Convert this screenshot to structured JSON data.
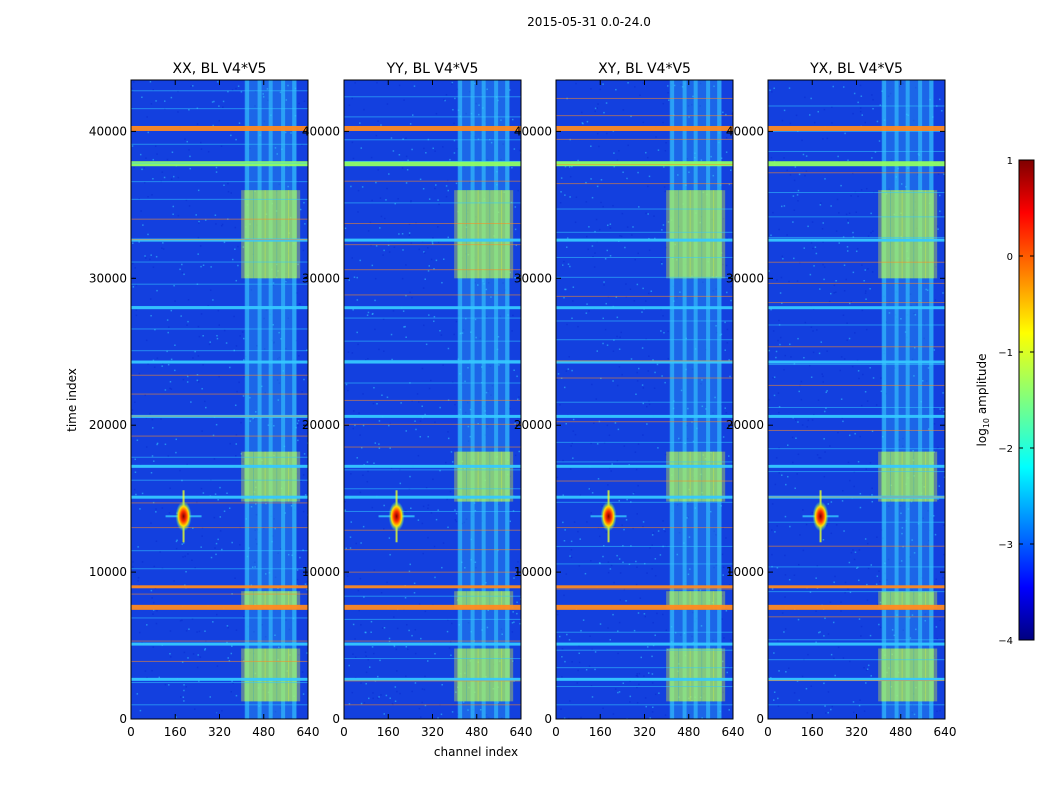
{
  "figure": {
    "suptitle": "2015-05-31 0.0-24.0",
    "xlabel": "channel index",
    "ylabel": "time index",
    "colorbar_label_prefix": "log",
    "colorbar_label_sub": "10",
    "colorbar_label_suffix": " amplitude"
  },
  "colors": {
    "background": "#00007f",
    "noise_base": "#1a55ff",
    "band_cyan": "#35c8ff",
    "band_green": "#8fff63",
    "band_yellow": "#e8ff2a",
    "line_orange": "#ff8a20",
    "line_red": "#ff3a00",
    "peak_red": "#b00000"
  },
  "chart_data": {
    "type": "heatmap",
    "panels": [
      {
        "title": "XX, BL V4*V5"
      },
      {
        "title": "YY, BL V4*V5"
      },
      {
        "title": "XY, BL V4*V5"
      },
      {
        "title": "YX, BL V4*V5"
      }
    ],
    "xlim": [
      0,
      640
    ],
    "ylim": [
      0,
      43500
    ],
    "x_ticks": [
      0,
      160,
      320,
      480,
      640
    ],
    "y_ticks": [
      0,
      10000,
      20000,
      30000,
      40000
    ],
    "colorbar": {
      "range": [
        -4,
        1
      ],
      "ticks": [
        "1",
        "0",
        "−1",
        "−2",
        "−3",
        "−4"
      ],
      "colormap": "jet"
    },
    "source_feature": {
      "channel": 190,
      "time": 13800
    },
    "rfi_channel_band": [
      410,
      600
    ],
    "horizontal_rfi_times": [
      40200,
      37800,
      32600,
      28000,
      24300,
      20600,
      17200,
      15100,
      9000,
      7600,
      5100,
      2700
    ]
  }
}
